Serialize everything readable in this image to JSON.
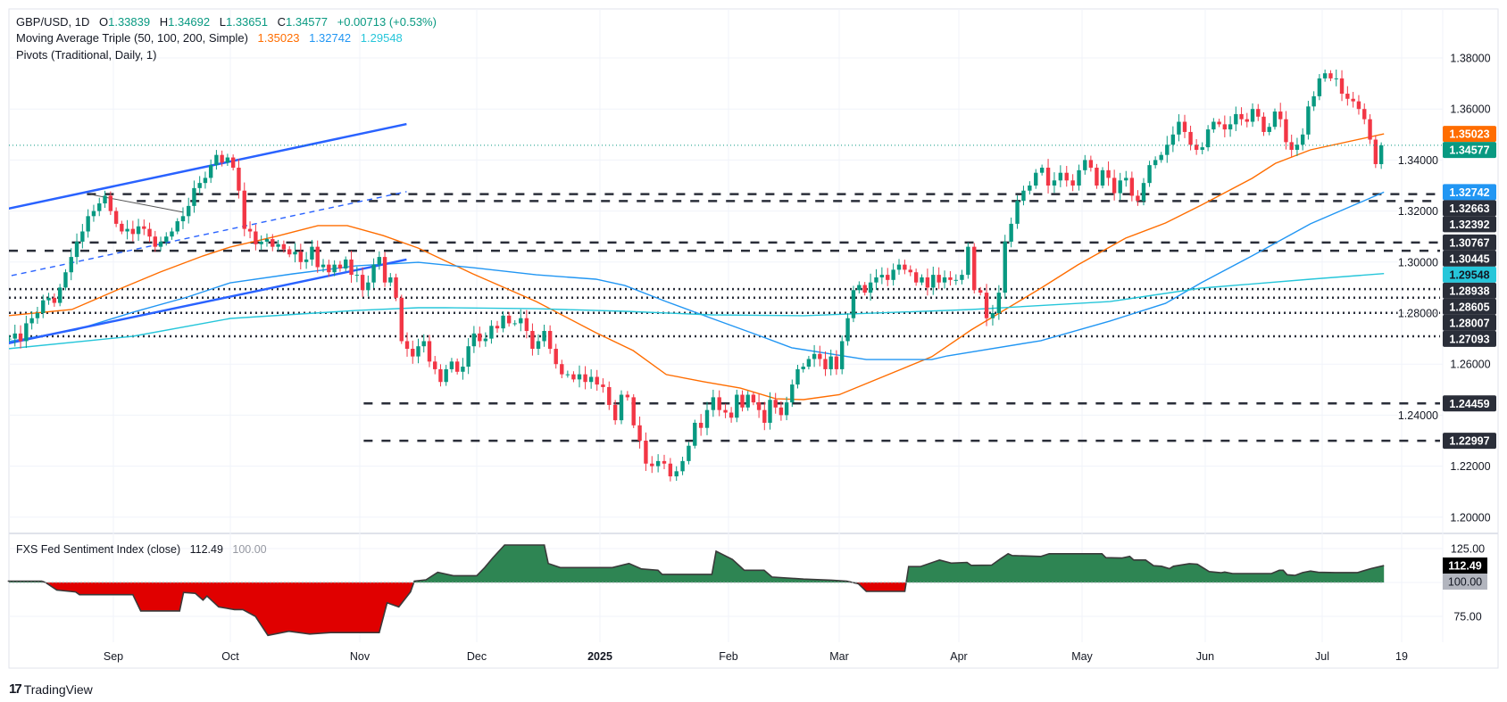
{
  "header": {
    "symbol": "GBP/USD, 1D",
    "o_label": "O",
    "open": "1.33839",
    "h_label": "H",
    "high": "1.34692",
    "l_label": "L",
    "low": "1.33651",
    "c_label": "C",
    "close": "1.34577",
    "change": "+0.00713 (+0.53%)"
  },
  "ma_legend": {
    "title": "Moving Average Triple (50, 100, 200, Simple)",
    "v50": "1.35023",
    "v100": "1.32742",
    "v200": "1.29548"
  },
  "pivots_legend": "Pivots (Traditional, Daily, 1)",
  "indicator_legend": {
    "title": "FXS Fed Sentiment Index (close)",
    "value": "112.49",
    "baseline": "100.00"
  },
  "branding": "TradingView",
  "colors": {
    "up": "#089981",
    "down": "#F23645",
    "ma50": "#FF6D00",
    "ma100": "#2196F3",
    "ma200": "#26C6DA",
    "trendline": "#2962FF",
    "pivot": "#2A2E39",
    "sentiment_positive": "#2E8553",
    "sentiment_negative": "#E00000"
  },
  "chart_data": {
    "type": "candlestick",
    "price_axis": {
      "ticks": [
        "1.38000",
        "1.36000",
        "1.34000",
        "1.32000",
        "1.30000",
        "1.28000",
        "1.26000",
        "1.24000",
        "1.22000",
        "1.20000"
      ],
      "range": [
        1.19,
        1.39
      ]
    },
    "time_axis": {
      "labels": [
        "Sep",
        "Oct",
        "Nov",
        "Dec",
        "2025",
        "Feb",
        "Mar",
        "Apr",
        "May",
        "Jun",
        "Jul",
        "19"
      ]
    },
    "closes_by_month": {
      "2024-08": [
        1.27,
        1.272,
        1.269,
        1.276,
        1.278,
        1.28,
        1.285,
        1.286,
        1.284,
        1.29,
        1.296,
        1.302,
        1.308,
        1.312,
        1.318,
        1.32,
        1.323,
        1.326,
        1.32
      ],
      "2024-09": [
        1.315,
        1.312,
        1.313,
        1.311,
        1.314,
        1.313,
        1.31,
        1.306,
        1.308,
        1.31,
        1.312,
        1.316,
        1.318,
        1.322,
        1.329,
        1.331,
        1.333,
        1.338,
        1.342,
        1.339,
        1.341
      ],
      "2024-10": [
        1.337,
        1.328,
        1.313,
        1.312,
        1.307,
        1.308,
        1.309,
        1.306,
        1.307,
        1.305,
        1.303,
        1.304,
        1.3,
        1.301,
        1.306,
        1.298,
        1.299,
        1.296,
        1.299,
        1.2975,
        1.301,
        1.295,
        1.295
      ],
      "2024-11": [
        1.289,
        1.292,
        1.299,
        1.302,
        1.292,
        1.294,
        1.286,
        1.269,
        1.266,
        1.263,
        1.267,
        1.269,
        1.261,
        1.258,
        1.253,
        1.258,
        1.261,
        1.257,
        1.259,
        1.267,
        1.272
      ],
      "2024-12": [
        1.269,
        1.27,
        1.275,
        1.274,
        1.279,
        1.276,
        1.276,
        1.278,
        1.273,
        1.266,
        1.269,
        1.273,
        1.266,
        1.26,
        1.256,
        1.256,
        1.254,
        1.256,
        1.253,
        1.255,
        1.252
      ],
      "2025-01": [
        1.251,
        1.244,
        1.238,
        1.248,
        1.247,
        1.236,
        1.23,
        1.221,
        1.22,
        1.222,
        1.221,
        1.216,
        1.218,
        1.222,
        1.228,
        1.237,
        1.235,
        1.242,
        1.247,
        1.242,
        1.241
      ],
      "2025-02": [
        1.239,
        1.248,
        1.243,
        1.248,
        1.245,
        1.242,
        1.237,
        1.246,
        1.243,
        1.24,
        1.245,
        1.252,
        1.258,
        1.259,
        1.262,
        1.264,
        1.262,
        1.258,
        1.263,
        1.258
      ],
      "2025-03": [
        1.269,
        1.278,
        1.289,
        1.291,
        1.288,
        1.292,
        1.294,
        1.295,
        1.293,
        1.297,
        1.299,
        1.297,
        1.296,
        1.292,
        1.294,
        1.29,
        1.295,
        1.292,
        1.294,
        1.293,
        1.293
      ],
      "2025-04": [
        1.295,
        1.306,
        1.289,
        1.288,
        1.278,
        1.28,
        1.288,
        1.308,
        1.315,
        1.324,
        1.328,
        1.33,
        1.335,
        1.337,
        1.33,
        1.332,
        1.335,
        1.332,
        1.33,
        1.336
      ],
      "2025-05": [
        1.34,
        1.337,
        1.33,
        1.336,
        1.333,
        1.327,
        1.332,
        1.333,
        1.326,
        1.324,
        1.331,
        1.338,
        1.34,
        1.342,
        1.346,
        1.35,
        1.355,
        1.351,
        1.346,
        1.344,
        1.345
      ],
      "2025-06": [
        1.352,
        1.355,
        1.354,
        1.352,
        1.354,
        1.358,
        1.356,
        1.355,
        1.36,
        1.357,
        1.351,
        1.353,
        1.359,
        1.356,
        1.347,
        1.344,
        1.346,
        1.35,
        1.361,
        1.365,
        1.372
      ],
      "2025-07": [
        1.374,
        1.372,
        1.372,
        1.366,
        1.364,
        1.363,
        1.36,
        1.356,
        1.348,
        1.3384,
        1.34577
      ]
    },
    "last_candle": {
      "open": 1.33839,
      "high": 1.34692,
      "low": 1.33651,
      "close": 1.34577
    },
    "current_price": "1.34577",
    "moving_averages": [
      {
        "name": "MA 50",
        "label": "1.35023",
        "color": "#FF6D00",
        "points": [
          [
            "2024-08-04",
            1.279
          ],
          [
            "2024-08-21",
            1.2814
          ],
          [
            "2024-09-02",
            1.2891
          ],
          [
            "2024-09-13",
            1.2961
          ],
          [
            "2024-09-24",
            1.3024
          ],
          [
            "2024-10-01",
            1.3059
          ],
          [
            "2024-10-12",
            1.3101
          ],
          [
            "2024-10-22",
            1.3143
          ],
          [
            "2024-10-29",
            1.3143
          ],
          [
            "2024-11-07",
            1.3104
          ],
          [
            "2024-11-16",
            1.3055
          ],
          [
            "2024-11-30",
            1.2954
          ],
          [
            "2024-12-16",
            1.2845
          ],
          [
            "2024-12-31",
            1.2723
          ],
          [
            "2025-01-09",
            1.2653
          ],
          [
            "2025-01-17",
            1.2559
          ],
          [
            "2025-01-26",
            1.2531
          ],
          [
            "2025-02-04",
            1.2506
          ],
          [
            "2025-02-13",
            1.2464
          ],
          [
            "2025-02-20",
            1.2461
          ],
          [
            "2025-03-01",
            1.248
          ],
          [
            "2025-03-25",
            1.2629
          ],
          [
            "2025-04-04",
            1.2734
          ],
          [
            "2025-04-21",
            1.2898
          ],
          [
            "2025-04-30",
            1.2989
          ],
          [
            "2025-05-12",
            1.3094
          ],
          [
            "2025-05-22",
            1.3153
          ],
          [
            "2025-05-31",
            1.3223
          ],
          [
            "2025-06-13",
            1.3328
          ],
          [
            "2025-06-19",
            1.3387
          ],
          [
            "2025-06-28",
            1.344
          ],
          [
            "2025-07-15",
            1.35023
          ]
        ]
      },
      {
        "name": "MA 100",
        "label": "1.32742",
        "color": "#2196F3",
        "points": [
          [
            "2024-08-04",
            1.2688
          ],
          [
            "2024-08-22",
            1.2734
          ],
          [
            "2024-09-06",
            1.2803
          ],
          [
            "2024-09-20",
            1.2863
          ],
          [
            "2024-10-01",
            1.2919
          ],
          [
            "2024-10-16",
            1.2954
          ],
          [
            "2024-10-31",
            1.2985
          ],
          [
            "2024-11-16",
            1.2999
          ],
          [
            "2024-11-30",
            1.2978
          ],
          [
            "2024-12-16",
            1.295
          ],
          [
            "2024-12-31",
            1.2933
          ],
          [
            "2025-01-07",
            1.2908
          ],
          [
            "2025-01-17",
            1.2845
          ],
          [
            "2025-01-28",
            1.2779
          ],
          [
            "2025-02-08",
            1.2716
          ],
          [
            "2025-02-17",
            1.2664
          ],
          [
            "2025-03-08",
            1.2618
          ],
          [
            "2025-03-25",
            1.2618
          ],
          [
            "2025-03-29",
            1.2632
          ],
          [
            "2025-04-21",
            1.2692
          ],
          [
            "2025-05-08",
            1.2769
          ],
          [
            "2025-05-22",
            1.2838
          ],
          [
            "2025-05-31",
            1.2919
          ],
          [
            "2025-06-13",
            1.3024
          ],
          [
            "2025-06-28",
            1.315
          ],
          [
            "2025-07-15",
            1.32742
          ]
        ]
      },
      {
        "name": "MA 200",
        "label": "1.29548",
        "color": "#26C6DA",
        "points": [
          [
            "2024-08-04",
            1.266
          ],
          [
            "2024-09-06",
            1.2709
          ],
          [
            "2024-10-01",
            1.2779
          ],
          [
            "2024-10-31",
            1.281
          ],
          [
            "2024-11-16",
            1.2821
          ],
          [
            "2024-11-23",
            1.2821
          ],
          [
            "2024-12-16",
            1.2817
          ],
          [
            "2025-01-07",
            1.2807
          ],
          [
            "2025-01-28",
            1.2793
          ],
          [
            "2025-02-20",
            1.279
          ],
          [
            "2025-04-04",
            1.2814
          ],
          [
            "2025-05-08",
            1.2845
          ],
          [
            "2025-05-31",
            1.2898
          ],
          [
            "2025-06-28",
            1.2933
          ],
          [
            "2025-07-15",
            1.29548
          ]
        ]
      }
    ],
    "pivot_levels": [
      {
        "value": "1.32663",
        "style": "dashed",
        "from": "2024-08-25"
      },
      {
        "value": "1.32392",
        "style": "dashed",
        "from": "2024-09-07"
      },
      {
        "value": "1.30767",
        "style": "dashed",
        "from": "2024-08-21"
      },
      {
        "value": "1.30445",
        "style": "dashed",
        "from": "2024-08-01"
      },
      {
        "value": "1.28938",
        "style": "dotted",
        "from": "2024-08-01"
      },
      {
        "value": "1.28605",
        "style": "dotted",
        "from": "2024-08-01"
      },
      {
        "value": "1.28007",
        "style": "dotted",
        "from": "2024-08-01"
      },
      {
        "value": "1.27093",
        "style": "dotted",
        "from": "2024-08-01"
      },
      {
        "value": "1.24459",
        "style": "dashed",
        "from": "2024-11-02"
      },
      {
        "value": "1.22997",
        "style": "dashed",
        "from": "2024-11-02"
      }
    ],
    "trend_lines": [
      {
        "style": "solid",
        "color": "#2962FF",
        "from": [
          "2024-08-04",
          1.3209
        ],
        "to": [
          "2024-11-13",
          1.3541
        ]
      },
      {
        "style": "solid",
        "color": "#2962FF",
        "from": [
          "2024-08-04",
          1.2681
        ],
        "to": [
          "2024-11-13",
          1.301
        ]
      },
      {
        "style": "dashed",
        "color": "#2962FF",
        "from": [
          "2024-08-05",
          1.2947
        ],
        "to": [
          "2024-11-13",
          1.3276
        ]
      },
      {
        "style": "thin",
        "color": "#555555",
        "from": [
          "2024-08-26",
          1.3265
        ],
        "to": [
          "2024-09-19",
          1.3195
        ]
      }
    ],
    "sentiment": {
      "axis_ticks": [
        "125.00",
        "75.00"
      ],
      "baseline": 100,
      "last": 112.49,
      "points": [
        [
          "2024-08-04",
          101
        ],
        [
          "2024-08-13",
          101
        ],
        [
          "2024-08-14",
          100
        ],
        [
          "2024-08-17",
          94.4
        ],
        [
          "2024-08-22",
          93
        ],
        [
          "2024-08-23",
          91
        ],
        [
          "2024-09-06",
          91
        ],
        [
          "2024-09-08",
          79
        ],
        [
          "2024-09-18",
          79
        ],
        [
          "2024-09-19",
          92.6
        ],
        [
          "2024-09-22",
          92
        ],
        [
          "2024-09-24",
          87
        ],
        [
          "2024-09-25",
          90
        ],
        [
          "2024-09-28",
          82
        ],
        [
          "2024-10-02",
          80
        ],
        [
          "2024-10-04",
          80
        ],
        [
          "2024-10-07",
          75
        ],
        [
          "2024-10-10",
          61
        ],
        [
          "2024-10-15",
          64
        ],
        [
          "2024-10-20",
          62
        ],
        [
          "2024-10-25",
          63
        ],
        [
          "2024-11-06",
          63
        ],
        [
          "2024-11-08",
          85
        ],
        [
          "2024-11-11",
          82
        ],
        [
          "2024-11-14",
          93
        ],
        [
          "2024-11-15",
          101
        ],
        [
          "2024-11-18",
          102
        ],
        [
          "2024-11-21",
          107.5
        ],
        [
          "2024-11-25",
          105
        ],
        [
          "2024-12-01",
          105
        ],
        [
          "2024-12-03",
          111
        ],
        [
          "2024-12-05",
          118
        ],
        [
          "2024-12-08",
          127.6
        ],
        [
          "2024-12-18",
          127.6
        ],
        [
          "2024-12-19",
          114
        ],
        [
          "2024-12-22",
          111
        ],
        [
          "2025-01-04",
          111
        ],
        [
          "2025-01-08",
          114
        ],
        [
          "2025-01-11",
          110
        ],
        [
          "2025-01-15",
          109
        ],
        [
          "2025-01-16",
          106
        ],
        [
          "2025-01-28",
          106
        ],
        [
          "2025-01-29",
          123
        ],
        [
          "2025-02-02",
          117
        ],
        [
          "2025-02-05",
          109
        ],
        [
          "2025-02-10",
          109
        ],
        [
          "2025-02-12",
          104
        ],
        [
          "2025-02-20",
          102.5
        ],
        [
          "2025-02-27",
          101.7
        ],
        [
          "2025-03-03",
          101
        ],
        [
          "2025-03-06",
          99
        ],
        [
          "2025-03-08",
          93.4
        ],
        [
          "2025-03-18",
          93.4
        ],
        [
          "2025-03-19",
          111.7
        ],
        [
          "2025-03-22",
          111.7
        ],
        [
          "2025-03-27",
          116.6
        ],
        [
          "2025-03-30",
          114.3
        ],
        [
          "2025-04-03",
          114.8
        ],
        [
          "2025-04-04",
          112.6
        ],
        [
          "2025-04-09",
          112.8
        ],
        [
          "2025-04-11",
          117.2
        ],
        [
          "2025-04-13",
          121.2
        ],
        [
          "2025-04-14",
          119.9
        ],
        [
          "2025-04-21",
          119.2
        ],
        [
          "2025-04-23",
          121.2
        ],
        [
          "2025-05-06",
          121.2
        ],
        [
          "2025-05-07",
          118.3
        ],
        [
          "2025-05-11",
          118
        ],
        [
          "2025-05-13",
          119.2
        ],
        [
          "2025-05-14",
          116.6
        ],
        [
          "2025-05-17",
          116.6
        ],
        [
          "2025-05-19",
          112.4
        ],
        [
          "2025-05-21",
          112
        ],
        [
          "2025-05-23",
          110.2
        ],
        [
          "2025-05-24",
          112
        ],
        [
          "2025-05-28",
          113.9
        ],
        [
          "2025-05-30",
          113.5
        ],
        [
          "2025-06-02",
          108
        ],
        [
          "2025-06-05",
          107.2
        ],
        [
          "2025-06-06",
          107.7
        ],
        [
          "2025-06-08",
          106.6
        ],
        [
          "2025-06-18",
          106.6
        ],
        [
          "2025-06-20",
          109
        ],
        [
          "2025-06-21",
          109
        ],
        [
          "2025-06-22",
          105.7
        ],
        [
          "2025-06-24",
          105.2
        ],
        [
          "2025-06-26",
          107.3
        ],
        [
          "2025-06-28",
          108.4
        ],
        [
          "2025-06-30",
          107.5
        ],
        [
          "2025-07-04",
          107.3
        ],
        [
          "2025-07-09",
          107.3
        ],
        [
          "2025-07-12",
          110.2
        ],
        [
          "2025-07-15",
          112.49
        ]
      ]
    }
  }
}
